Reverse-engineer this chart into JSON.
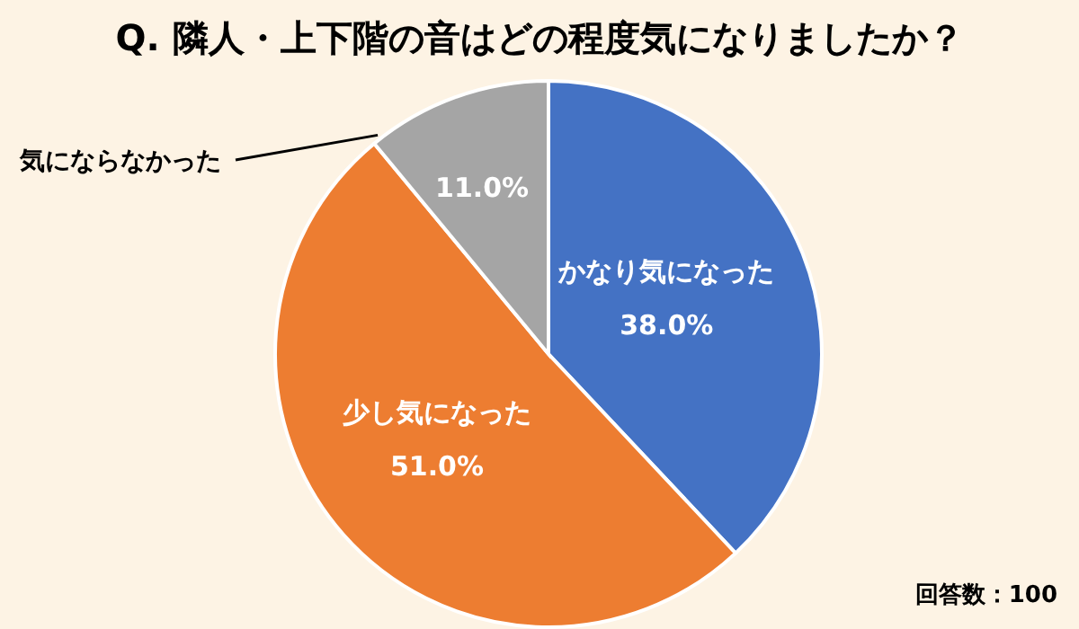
{
  "chart_data": {
    "type": "pie",
    "title": "Q. 隣人・上下階の音はどの程度気になりましたか？",
    "categories": [
      "かなり気になった",
      "少し気になった",
      "気にならなかった"
    ],
    "values": [
      38,
      51,
      11
    ],
    "value_labels": [
      "38.0%",
      "51.0%",
      "11.0%"
    ],
    "colors": [
      "#4472c4",
      "#ed7d31",
      "#a5a5a5"
    ],
    "annotations": [
      "回答数：100"
    ]
  }
}
